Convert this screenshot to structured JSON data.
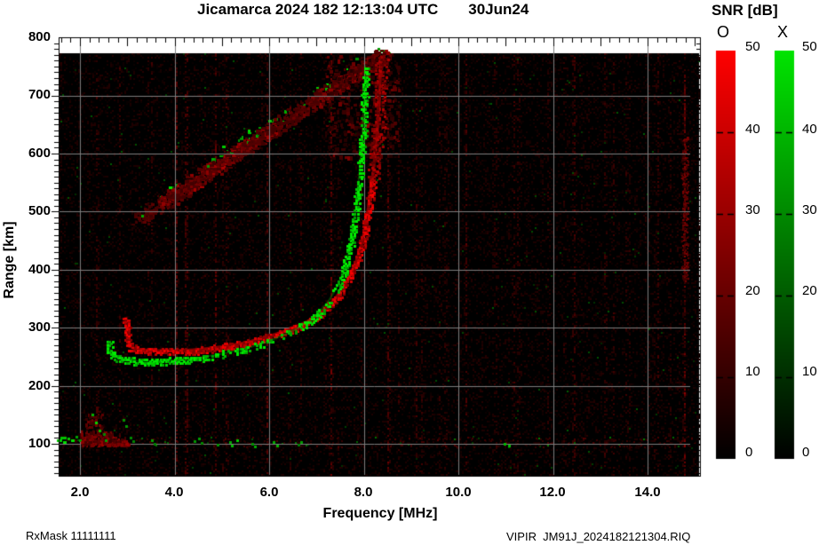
{
  "title": {
    "station": "Jicamarca 2024 182 12:13:04 UTC",
    "date": "30Jun24"
  },
  "footer": {
    "rx_mask": "RxMask 11111111",
    "file": "VIPIR  JM91J_2024182121304.RIQ"
  },
  "colorbar": {
    "header": "SNR [dB]",
    "o_label": "O",
    "x_label": "X",
    "o_color": "#ff0000",
    "x_color": "#00e400",
    "ticks": [
      "50",
      "40",
      "30",
      "20",
      "10",
      "0"
    ]
  },
  "axes": {
    "x": {
      "label": "Frequency [MHz]",
      "ticks": [
        "2.0",
        "4.0",
        "6.0",
        "8.0",
        "10.0",
        "12.0",
        "14.0"
      ]
    },
    "y": {
      "label": "Range [km]",
      "ticks": [
        "800",
        "700",
        "600",
        "500",
        "400",
        "300",
        "200",
        "100"
      ]
    }
  },
  "chart_data": {
    "type": "heatmap",
    "description": "VIPIR digital ionosonde ionogram: O-mode (red) and X-mode (green) echo SNR versus sounding frequency and virtual range",
    "title": "Jicamarca 2024 182 12:13:04 UTC 30Jun24",
    "xlabel": "Frequency [MHz]",
    "ylabel": "Range [km]",
    "xlim": [
      1.55,
      15.1
    ],
    "ylim": [
      45,
      800
    ],
    "data_range_top_km": 773,
    "x_major_ticks": [
      2,
      4,
      6,
      8,
      10,
      12,
      14
    ],
    "x_minor_step_mhz": 0.2,
    "y_major_ticks": [
      100,
      200,
      300,
      400,
      500,
      600,
      700,
      800
    ],
    "y_minor_step_km": 10,
    "grid": true,
    "snr_scale": {
      "min": 0,
      "max": 50,
      "ticks": [
        0,
        10,
        20,
        30,
        40,
        50
      ],
      "units": "dB"
    },
    "critical_frequencies": {
      "o_trace_asymptote_mhz": 8.37,
      "x_trace_asymptote_mhz": 8.03
    },
    "series": [
      {
        "name": "O-mode trace",
        "color": "#ff0000",
        "points": [
          [
            2.97,
            318
          ],
          [
            3.0,
            285
          ],
          [
            3.05,
            268
          ],
          [
            3.2,
            263
          ],
          [
            3.6,
            260
          ],
          [
            4.0,
            260
          ],
          [
            4.5,
            262
          ],
          [
            5.0,
            267
          ],
          [
            5.5,
            274
          ],
          [
            6.0,
            285
          ],
          [
            6.4,
            296
          ],
          [
            6.8,
            310
          ],
          [
            7.1,
            326
          ],
          [
            7.4,
            350
          ],
          [
            7.65,
            380
          ],
          [
            7.85,
            415
          ],
          [
            8.0,
            458
          ],
          [
            8.1,
            508
          ],
          [
            8.2,
            568
          ],
          [
            8.28,
            632
          ],
          [
            8.33,
            694
          ],
          [
            8.36,
            752
          ],
          [
            8.37,
            768
          ]
        ]
      },
      {
        "name": "X-mode trace",
        "color": "#00dd00",
        "points": [
          [
            2.6,
            278
          ],
          [
            2.64,
            258
          ],
          [
            2.72,
            250
          ],
          [
            2.9,
            246
          ],
          [
            3.2,
            243
          ],
          [
            3.6,
            242
          ],
          [
            4.0,
            244
          ],
          [
            4.5,
            248
          ],
          [
            5.0,
            255
          ],
          [
            5.5,
            264
          ],
          [
            6.0,
            277
          ],
          [
            6.4,
            291
          ],
          [
            6.75,
            306
          ],
          [
            7.0,
            322
          ],
          [
            7.25,
            345
          ],
          [
            7.45,
            372
          ],
          [
            7.6,
            404
          ],
          [
            7.72,
            448
          ],
          [
            7.82,
            498
          ],
          [
            7.9,
            558
          ],
          [
            7.97,
            628
          ],
          [
            8.01,
            694
          ],
          [
            8.03,
            752
          ]
        ]
      }
    ],
    "oblique_band": {
      "name": "oblique spread-F echo band",
      "from": [
        3.2,
        487
      ],
      "to": [
        8.4,
        772
      ]
    },
    "spread_cloud": {
      "f": [
        7.2,
        8.75
      ],
      "range": [
        595,
        772
      ]
    },
    "e_region": {
      "green_dashes": [
        [
          1.52,
          107
        ],
        [
          1.58,
          112
        ],
        [
          1.65,
          105
        ],
        [
          1.73,
          110
        ],
        [
          1.82,
          107
        ],
        [
          1.9,
          113
        ],
        [
          1.98,
          108
        ],
        [
          2.04,
          105
        ]
      ],
      "red_plume": {
        "f": [
          2.0,
          3.0
        ],
        "range": [
          100,
          175
        ],
        "peak_f": 2.28
      },
      "specks": [
        [
          2.25,
          152
        ],
        [
          2.32,
          138
        ],
        [
          2.4,
          125
        ],
        [
          2.48,
          118
        ],
        [
          2.52,
          108
        ],
        [
          2.9,
          143
        ],
        [
          2.95,
          132
        ],
        [
          3.05,
          112
        ],
        [
          3.1,
          106
        ],
        [
          3.5,
          108
        ],
        [
          3.55,
          102
        ],
        [
          4.4,
          106
        ],
        [
          4.5,
          110
        ],
        [
          4.55,
          103
        ],
        [
          4.9,
          100
        ],
        [
          5.15,
          104
        ],
        [
          5.2,
          98
        ],
        [
          5.3,
          107
        ],
        [
          5.62,
          101
        ],
        [
          5.68,
          97
        ],
        [
          6.08,
          104
        ],
        [
          6.15,
          99
        ],
        [
          6.6,
          100
        ],
        [
          6.65,
          104
        ],
        [
          10.95,
          102
        ],
        [
          11.05,
          98
        ]
      ]
    },
    "rfi_stripes": [
      {
        "f": 2.35,
        "s": 0.18
      },
      {
        "f": 4.02,
        "s": 0.3
      },
      {
        "f": 4.85,
        "s": 0.2
      },
      {
        "f": 5.95,
        "s": 0.26
      },
      {
        "f": 6.65,
        "s": 0.15
      },
      {
        "f": 7.3,
        "s": 0.2
      },
      {
        "f": 8.52,
        "s": 0.32
      },
      {
        "f": 8.75,
        "s": 0.2
      },
      {
        "f": 9.1,
        "s": 0.16
      },
      {
        "f": 9.6,
        "s": 0.14
      },
      {
        "f": 10.15,
        "s": 0.22
      },
      {
        "f": 10.8,
        "s": 0.14
      },
      {
        "f": 11.25,
        "s": 0.18
      },
      {
        "f": 11.9,
        "s": 0.14
      },
      {
        "f": 12.45,
        "s": 0.2
      },
      {
        "f": 13.1,
        "s": 0.15
      },
      {
        "f": 13.55,
        "s": 0.14
      },
      {
        "f": 14.2,
        "s": 0.16
      },
      {
        "f": 14.77,
        "s": 0.38
      }
    ],
    "rfi_patch": {
      "f": [
        14.72,
        14.85
      ],
      "range": [
        380,
        630
      ]
    }
  }
}
